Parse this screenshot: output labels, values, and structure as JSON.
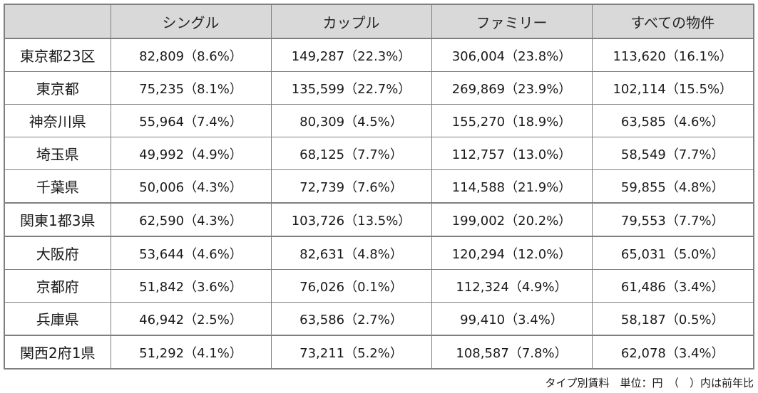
{
  "table": {
    "headers": [
      "",
      "シングル",
      "カップル",
      "ファミリー",
      "すべての物件"
    ],
    "rows": [
      {
        "region": "東京都23区",
        "single": "82,809（8.6%）",
        "couple": "149,287（22.3%）",
        "family": "306,004（23.8%）",
        "all": "113,620（16.1%）"
      },
      {
        "region": "東京都",
        "single": "75,235（8.1%）",
        "couple": "135,599（22.7%）",
        "family": "269,869（23.9%）",
        "all": "102,114（15.5%）"
      },
      {
        "region": "神奈川県",
        "single": "55,964（7.4%）",
        "couple": "80,309（4.5%）",
        "family": "155,270（18.9%）",
        "all": "63,585（4.6%）"
      },
      {
        "region": "埼玉県",
        "single": "49,992（4.9%）",
        "couple": "68,125（7.7%）",
        "family": "112,757（13.0%）",
        "all": "58,549（7.7%）"
      },
      {
        "region": "千葉県",
        "single": "50,006（4.3%）",
        "couple": "72,739（7.6%）",
        "family": "114,588（21.9%）",
        "all": "59,855（4.8%）"
      },
      {
        "region": "関東1都3県",
        "single": "62,590（4.3%）",
        "couple": "103,726（13.5%）",
        "family": "199,002（20.2%）",
        "all": "79,553（7.7%）"
      },
      {
        "region": "大阪府",
        "single": "53,644（4.6%）",
        "couple": "82,631（4.8%）",
        "family": "120,294（12.0%）",
        "all": "65,031（5.0%）"
      },
      {
        "region": "京都府",
        "single": "51,842（3.6%）",
        "couple": "76,026（0.1%）",
        "family": "112,324（4.9%）",
        "all": "61,486（3.4%）"
      },
      {
        "region": "兵庫県",
        "single": "46,942（2.5%）",
        "couple": "63,586（2.7%）",
        "family": "99,410（3.4%）",
        "all": "58,187（0.5%）"
      },
      {
        "region": "関西2府1県",
        "single": "51,292（4.1%）",
        "couple": "73,211（5.2%）",
        "family": "108,587（7.8%）",
        "all": "62,078（3.4%）"
      }
    ]
  },
  "footnote": "タイプ別賃料　単位：円　（　）内は前年比"
}
